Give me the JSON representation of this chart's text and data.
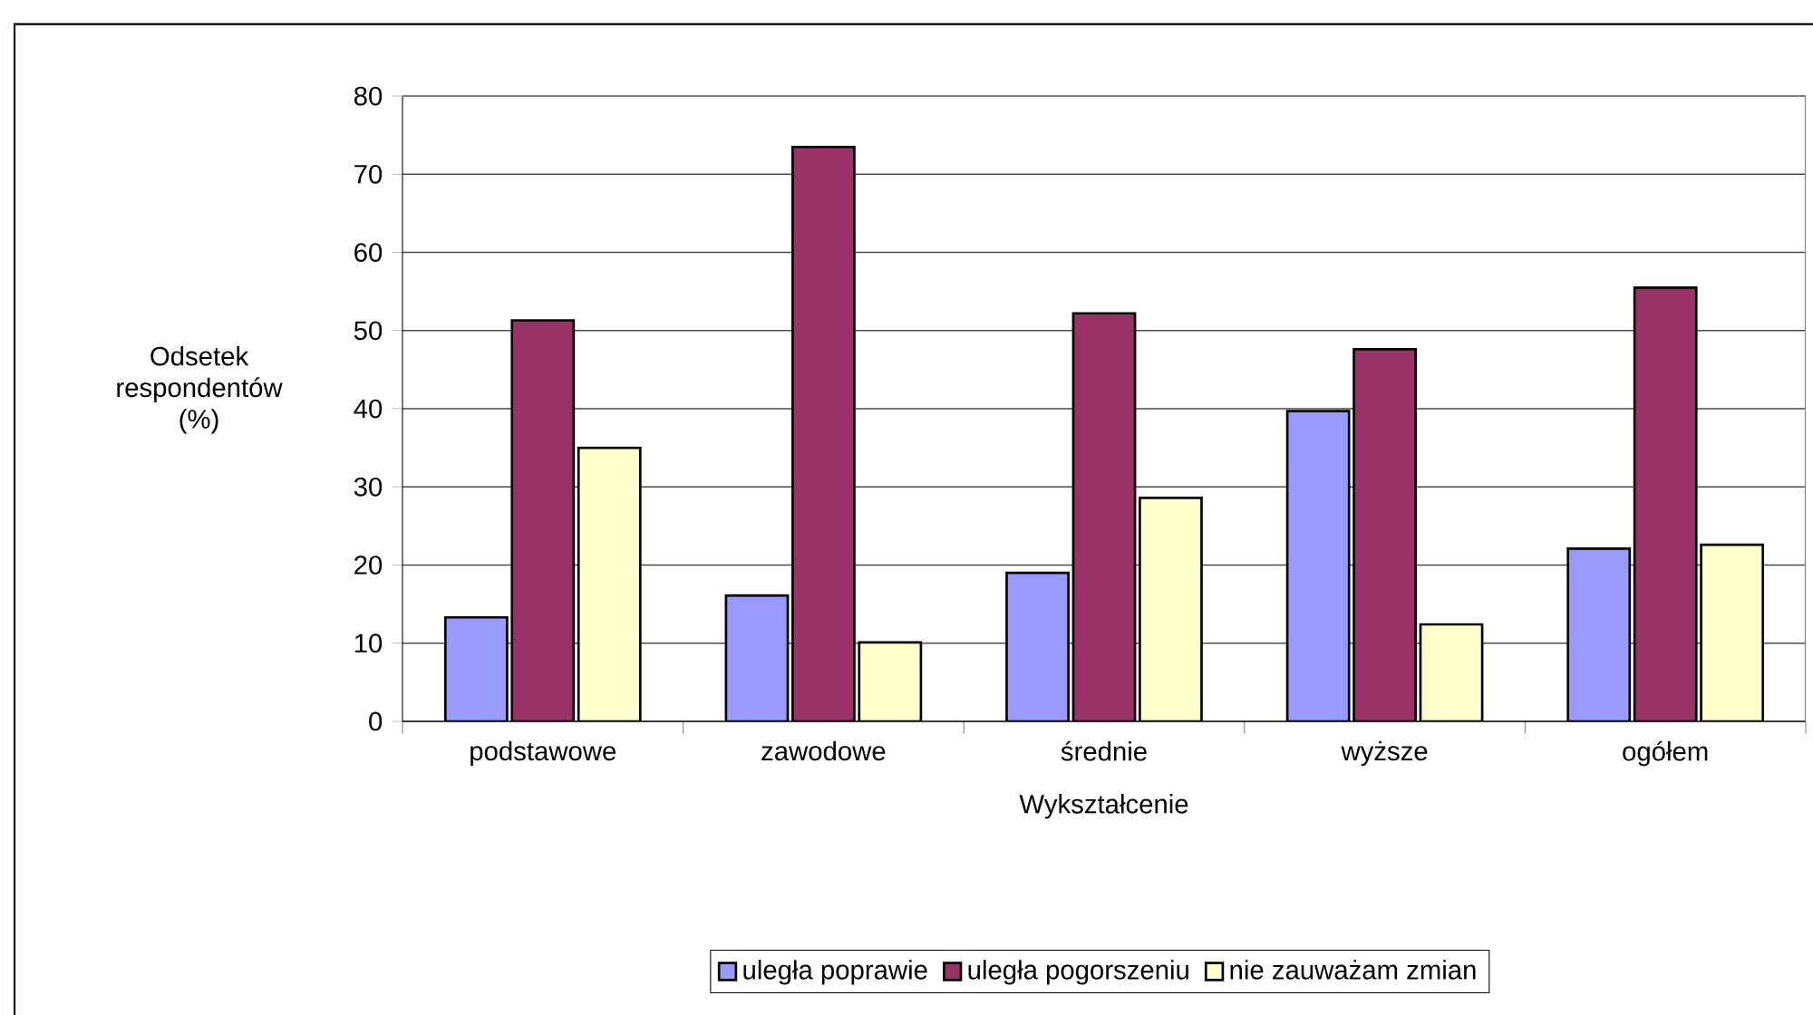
{
  "chart_data": {
    "type": "bar",
    "xlabel": "Wykształcenie",
    "ylabel": "Odsetek respondentów (%)",
    "categories": [
      "podstawowe",
      "zawodowe",
      "średnie",
      "wyższe",
      "ogółem"
    ],
    "series": [
      {
        "name": "uległa poprawie",
        "color": "#9999ff",
        "values": [
          13.3,
          16.1,
          19.0,
          39.7,
          22.1
        ]
      },
      {
        "name": "uległa pogorszeniu",
        "color": "#993366",
        "values": [
          51.3,
          73.5,
          52.2,
          47.6,
          55.5
        ]
      },
      {
        "name": "nie zauważam zmian",
        "color": "#ffffcc",
        "values": [
          35.0,
          10.1,
          28.6,
          12.4,
          22.6
        ]
      }
    ],
    "ylim": [
      0,
      80
    ],
    "yticks": [
      0,
      10,
      20,
      30,
      40,
      50,
      60,
      70,
      80
    ],
    "grid": "y",
    "legend": "bottom"
  }
}
